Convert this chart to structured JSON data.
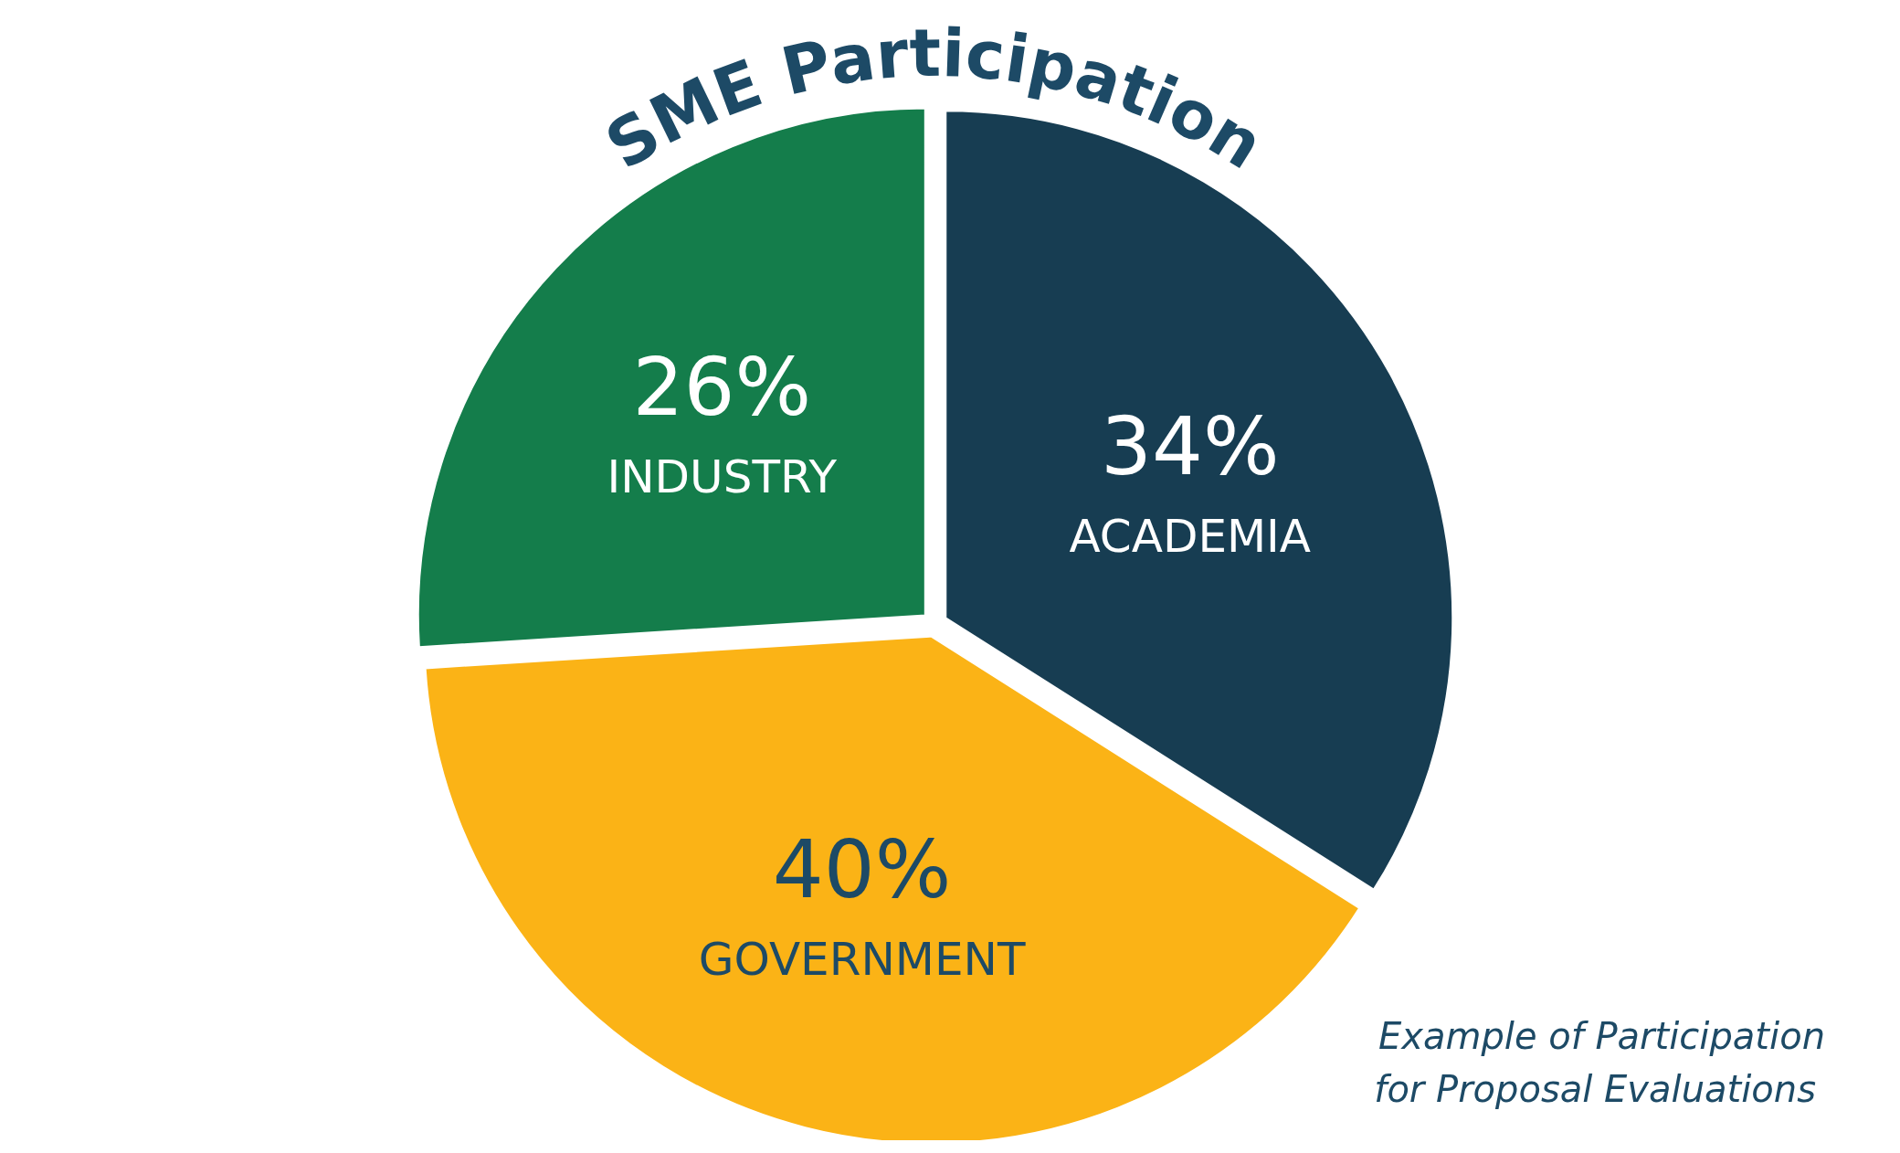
{
  "chart_data": {
    "type": "pie",
    "title": "SME Participation",
    "categories": [
      "ACADEMIA",
      "GOVERNMENT",
      "INDUSTRY"
    ],
    "values": [
      34,
      40,
      26
    ],
    "colors": [
      "#173d52",
      "#fbb316",
      "#147d4b"
    ],
    "value_labels": [
      "34%",
      "40%",
      "26%"
    ],
    "annotations": [
      "Example of Participation\nfor Proposal Evaluations"
    ]
  }
}
